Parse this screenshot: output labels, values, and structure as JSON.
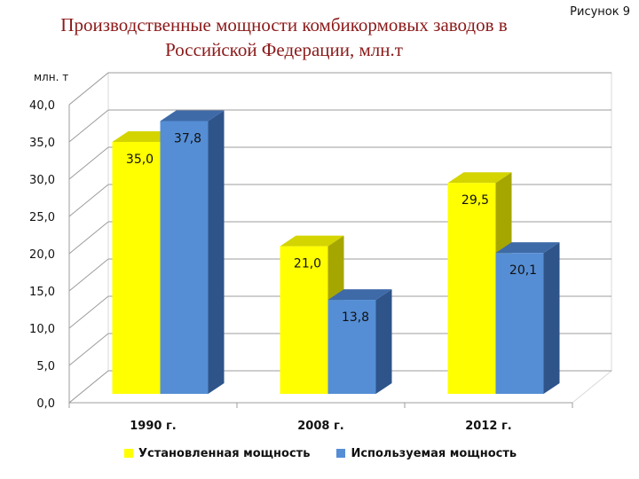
{
  "figure_label": "Рисунок 9",
  "colors": {
    "yellow": "#ffff00",
    "blue": "#558ed5",
    "title": "#8b1a1a"
  },
  "chart_data": {
    "type": "bar",
    "title_lines": [
      "Производственные мощности комбикормовых заводов в",
      "Российской Федерации, млн.т"
    ],
    "ylabel": "млн. т",
    "xlabel": "",
    "categories": [
      "1990 г.",
      "2008 г.",
      "2012 г."
    ],
    "series": [
      {
        "name": "Установленная мощность",
        "values": [
          35.0,
          21.0,
          29.5
        ],
        "labels": [
          "35,0",
          "21,0",
          "29,5"
        ]
      },
      {
        "name": "Используемая мощность",
        "values": [
          37.8,
          13.8,
          20.1
        ],
        "labels": [
          "37,8",
          "13,8",
          "20,1"
        ]
      }
    ],
    "yticks": [
      "0,0",
      "5,0",
      "10,0",
      "15,0",
      "20,0",
      "25,0",
      "30,0",
      "35,0",
      "40,0"
    ],
    "ylim": [
      0,
      40
    ],
    "grid": true,
    "legend_position": "bottom"
  }
}
